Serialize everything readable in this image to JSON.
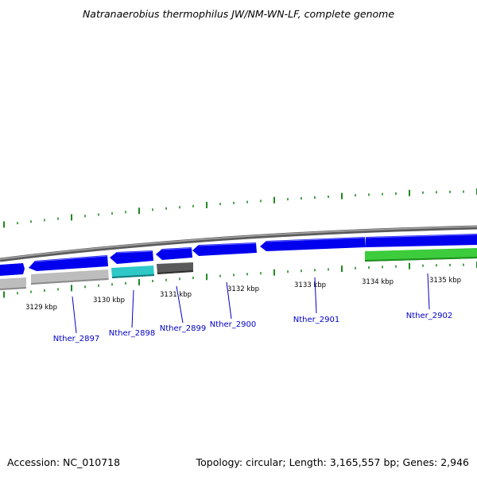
{
  "title": "Natranaerobius thermophilus JW/NM-WN-LF, complete genome",
  "accession": "Accession: NC_010718",
  "summary": "Topology: circular; Length: 3,165,557 bp; Genes: 2,946",
  "tick_labels": [
    "3129 kbp",
    "3130 kbp",
    "3131 kbp",
    "3132 kbp",
    "3133 kbp",
    "3134 kbp",
    "3135 kbp"
  ],
  "gene_labels": [
    "Nther_2897",
    "Nther_2898",
    "Nther_2899",
    "Nther_2900",
    "Nther_2901",
    "Nther_2902"
  ],
  "colors": {
    "backbone": "#808080",
    "forward_cds": "#0000ee",
    "rna_gray": "#bdbdbd",
    "rna_cyan": "#2ec8c8",
    "rna_dark": "#5a5a5a",
    "misc_green": "#3ccc3c",
    "tick_green": "#1f8a1f",
    "label_blue": "#0000c8"
  }
}
